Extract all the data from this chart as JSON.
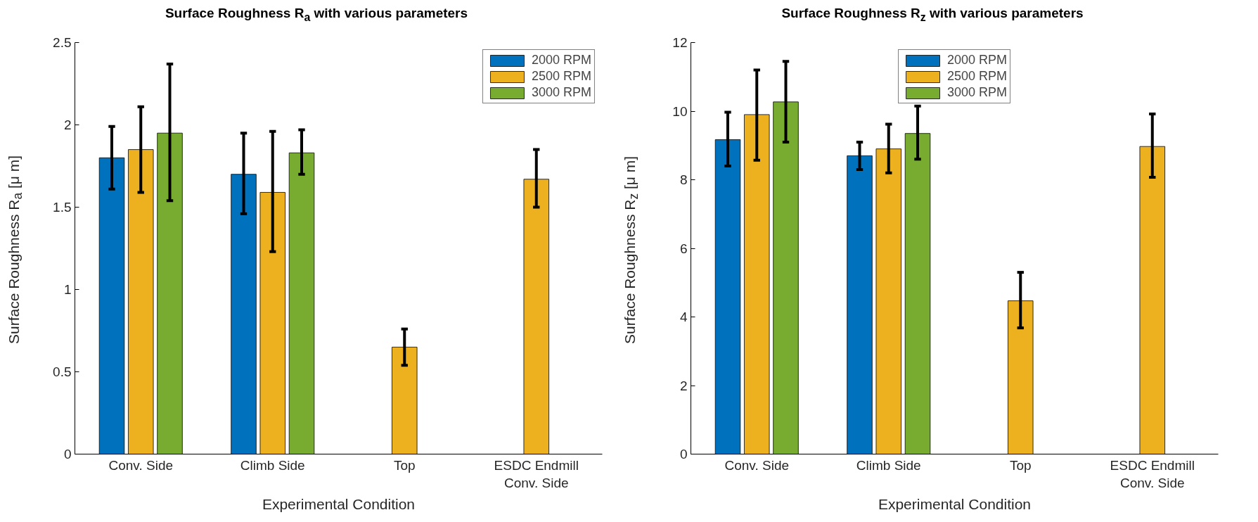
{
  "chart_data": [
    {
      "type": "bar",
      "title": "Surface Roughness R$_{a}$ with various parameters",
      "xlabel": "Experimental Condition",
      "ylabel": "Surface Roughness R$_{a}$ [μ m]",
      "categories": [
        "Conv. Side",
        "Climb Side",
        "Top",
        "ESDC Endmill\nConv. Side"
      ],
      "series": [
        {
          "name": "2000 RPM",
          "color": "#0072bd",
          "values": [
            1.8,
            1.7,
            null,
            null
          ],
          "errors": [
            [
              1.61,
              1.99
            ],
            [
              1.46,
              1.95
            ],
            null,
            null
          ]
        },
        {
          "name": "2500 RPM",
          "color": "#edb120",
          "values": [
            1.85,
            1.59,
            0.65,
            1.67
          ],
          "errors": [
            [
              1.59,
              2.11
            ],
            [
              1.23,
              1.96
            ],
            [
              0.54,
              0.76
            ],
            [
              1.5,
              1.85
            ]
          ]
        },
        {
          "name": "3000 RPM",
          "color": "#77ac30",
          "values": [
            1.95,
            1.83,
            null,
            null
          ],
          "errors": [
            [
              1.54,
              2.37
            ],
            [
              1.7,
              1.97
            ],
            null,
            null
          ]
        }
      ],
      "ylim": [
        0,
        2.5
      ],
      "yticks": [
        0,
        0.5,
        1,
        1.5,
        2,
        2.5
      ],
      "legend": "top right",
      "grid": false
    },
    {
      "type": "bar",
      "title": "Surface Roughness R$_{z}$ with various parameters",
      "xlabel": "Experimental Condition",
      "ylabel": "Surface Roughness R$_{z}$ [μ m]",
      "categories": [
        "Conv. Side",
        "Climb Side",
        "Top",
        "ESDC Endmill\nConv. Side"
      ],
      "series": [
        {
          "name": "2000 RPM",
          "color": "#0072bd",
          "values": [
            9.17,
            8.7,
            null,
            null
          ],
          "errors": [
            [
              8.4,
              9.97
            ],
            [
              8.3,
              9.1
            ],
            null,
            null
          ]
        },
        {
          "name": "2500 RPM",
          "color": "#edb120",
          "values": [
            9.9,
            8.9,
            4.47,
            8.97
          ],
          "errors": [
            [
              8.57,
              11.2
            ],
            [
              8.2,
              9.62
            ],
            [
              3.68,
              5.3
            ],
            [
              8.07,
              9.92
            ]
          ]
        },
        {
          "name": "3000 RPM",
          "color": "#77ac30",
          "values": [
            10.27,
            9.35,
            null,
            null
          ],
          "errors": [
            [
              9.1,
              11.45
            ],
            [
              8.6,
              10.15
            ],
            null,
            null
          ]
        }
      ],
      "ylim": [
        0,
        12
      ],
      "yticks": [
        0,
        2,
        4,
        6,
        8,
        10,
        12
      ],
      "legend": "top",
      "grid": false
    }
  ]
}
